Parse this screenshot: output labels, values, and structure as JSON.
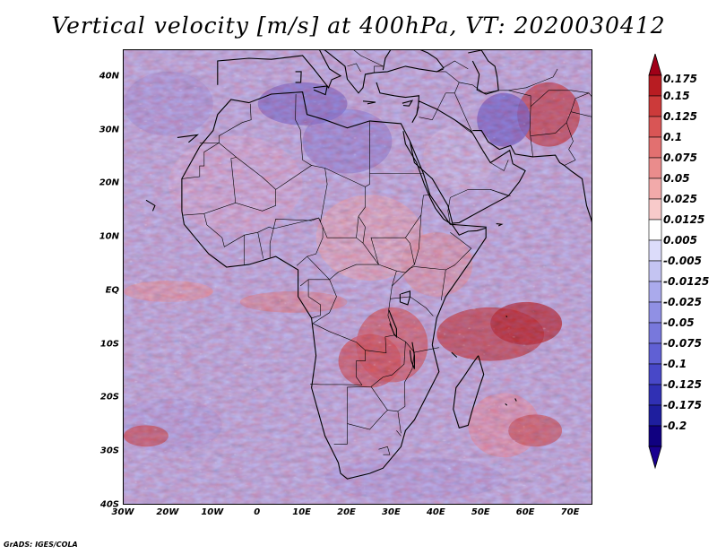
{
  "title": "Vertical velocity [m/s] at 400hPa, VT: 2020030412",
  "credit": "GrADS: IGES/COLA",
  "map": {
    "lon_range": [
      -30,
      75
    ],
    "lat_range": [
      -40,
      45
    ],
    "lat_ticks": [
      "40N",
      "30N",
      "20N",
      "10N",
      "EQ",
      "10S",
      "20S",
      "30S",
      "40S"
    ],
    "lat_values": [
      40,
      30,
      20,
      10,
      0,
      -10,
      -20,
      -30,
      -40
    ],
    "lon_ticks": [
      "30W",
      "20W",
      "10W",
      "0",
      "10E",
      "20E",
      "30E",
      "40E",
      "50E",
      "60E",
      "70E"
    ],
    "lon_values": [
      -30,
      -20,
      -10,
      0,
      10,
      20,
      30,
      40,
      50,
      60,
      70
    ]
  },
  "colorbar": {
    "labels": [
      "0.175",
      "0.15",
      "0.125",
      "0.1",
      "0.075",
      "0.05",
      "0.025",
      "0.0125",
      "0.005",
      "-0.005",
      "-0.0125",
      "-0.025",
      "-0.05",
      "-0.075",
      "-0.1",
      "-0.125",
      "-0.175",
      "-0.2"
    ],
    "colors": [
      "#a00018",
      "#b81c22",
      "#cc3a3a",
      "#d95555",
      "#e27070",
      "#ea8c8c",
      "#f2aaaa",
      "#f8caca",
      "#ffffff",
      "#dcdcfa",
      "#c4c4f2",
      "#aaaaec",
      "#9090e4",
      "#7878dc",
      "#6060d4",
      "#4848c8",
      "#3030b4",
      "#1e1e9e",
      "#100080"
    ],
    "top_color": "#a00018",
    "bottom_color": "#1a0090"
  },
  "field": {
    "sea_color": "#c9c9f4",
    "land_color": "#ead8e6",
    "coast_color": "#000000"
  }
}
